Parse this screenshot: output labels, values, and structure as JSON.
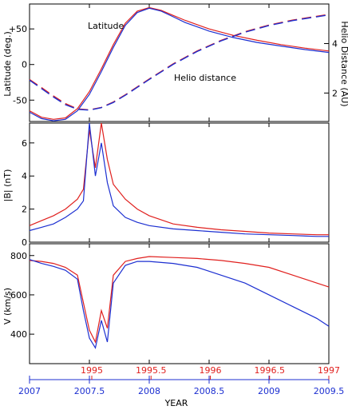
{
  "colors": {
    "red": "#e0201e",
    "blue": "#1c2fd1",
    "axis": "#000000"
  },
  "chart_data": [
    {
      "type": "line",
      "panel": "top",
      "ylabel": "Latitude (deg.)",
      "ylabel_right": "Helio Distance (AU)",
      "ylim": [
        -80,
        85
      ],
      "ylim_right": [
        0.85,
        5.6
      ],
      "yticks": [
        50,
        0,
        -50
      ],
      "ytick_labels": [
        "+50",
        "0",
        "-50"
      ],
      "yticks_right": [
        2,
        4
      ],
      "ytick_labels_right": [
        "2",
        "4"
      ],
      "annotations": [
        "Latitude",
        "Helio distance"
      ],
      "series": [
        {
          "color": "red",
          "x": [
            2007.0,
            2007.1,
            2007.2,
            2007.3,
            2007.4,
            2007.5,
            2007.6,
            2007.7,
            2007.8,
            2007.9,
            2008.0,
            2008.1,
            2008.2,
            2008.3,
            2008.5,
            2008.7,
            2008.9,
            2009.1,
            2009.3,
            2009.5
          ],
          "values": [
            -65,
            -74,
            -77,
            -75,
            -62,
            -38,
            -6,
            28,
            58,
            75,
            80,
            76,
            69,
            62,
            50,
            41,
            34,
            28,
            23,
            19
          ]
        },
        {
          "color": "blue",
          "x": [
            2007.0,
            2007.1,
            2007.2,
            2007.3,
            2007.4,
            2007.5,
            2007.6,
            2007.7,
            2007.8,
            2007.9,
            2008.0,
            2008.1,
            2008.2,
            2008.3,
            2008.5,
            2008.7,
            2008.9,
            2009.1,
            2009.3,
            2009.5
          ],
          "values": [
            -67,
            -76,
            -79,
            -77,
            -65,
            -42,
            -10,
            24,
            55,
            73,
            79,
            75,
            67,
            59,
            47,
            38,
            31,
            26,
            21,
            17
          ]
        },
        {
          "color": "red",
          "dashed": true,
          "x": [
            2007.0,
            2007.1,
            2007.2,
            2007.3,
            2007.4,
            2007.5,
            2007.6,
            2007.7,
            2007.8,
            2007.9,
            2008.0,
            2008.2,
            2008.4,
            2008.6,
            2008.8,
            2009.0,
            2009.2,
            2009.5
          ],
          "values": [
            2.55,
            2.22,
            1.88,
            1.57,
            1.36,
            1.32,
            1.42,
            1.64,
            1.93,
            2.25,
            2.57,
            3.18,
            3.7,
            4.13,
            4.48,
            4.75,
            4.95,
            5.18
          ]
        },
        {
          "color": "blue",
          "dashed": true,
          "x": [
            2007.0,
            2007.1,
            2007.2,
            2007.3,
            2007.4,
            2007.5,
            2007.6,
            2007.7,
            2007.8,
            2007.9,
            2008.0,
            2008.2,
            2008.4,
            2008.6,
            2008.8,
            2009.0,
            2009.2,
            2009.5
          ],
          "values": [
            2.52,
            2.18,
            1.84,
            1.53,
            1.34,
            1.31,
            1.41,
            1.62,
            1.91,
            2.23,
            2.55,
            3.16,
            3.68,
            4.11,
            4.46,
            4.73,
            4.93,
            5.16
          ]
        }
      ]
    },
    {
      "type": "line",
      "panel": "middle",
      "ylabel": "|B| (nT)",
      "ylim": [
        0,
        7.2
      ],
      "yticks": [
        0,
        2,
        4,
        6
      ],
      "ytick_labels": [
        "0",
        "2",
        "4",
        "6"
      ],
      "series": [
        {
          "color": "red",
          "x": [
            2007.0,
            2007.1,
            2007.2,
            2007.3,
            2007.4,
            2007.45,
            2007.5,
            2007.55,
            2007.6,
            2007.65,
            2007.7,
            2007.8,
            2007.9,
            2008.0,
            2008.2,
            2008.4,
            2008.6,
            2008.8,
            2009.0,
            2009.2,
            2009.4,
            2009.5
          ],
          "values": [
            1.0,
            1.3,
            1.6,
            2.0,
            2.6,
            3.2,
            6.8,
            4.5,
            7.2,
            5.0,
            3.5,
            2.6,
            2.0,
            1.6,
            1.1,
            0.9,
            0.75,
            0.65,
            0.55,
            0.5,
            0.45,
            0.45
          ]
        },
        {
          "color": "blue",
          "x": [
            2007.0,
            2007.1,
            2007.2,
            2007.3,
            2007.4,
            2007.45,
            2007.5,
            2007.55,
            2007.6,
            2007.65,
            2007.7,
            2007.8,
            2007.9,
            2008.0,
            2008.2,
            2008.4,
            2008.6,
            2008.8,
            2009.0,
            2009.2,
            2009.4,
            2009.5
          ],
          "values": [
            0.7,
            0.9,
            1.1,
            1.5,
            2.0,
            2.5,
            7.2,
            4.0,
            6.0,
            3.6,
            2.2,
            1.5,
            1.2,
            1.0,
            0.8,
            0.7,
            0.6,
            0.5,
            0.45,
            0.4,
            0.35,
            0.35
          ]
        }
      ]
    },
    {
      "type": "line",
      "panel": "bottom",
      "ylabel": "V (km/s)",
      "ylim": [
        250,
        860
      ],
      "yticks": [
        400,
        600,
        800
      ],
      "ytick_labels": [
        "400",
        "600",
        "800"
      ],
      "series": [
        {
          "color": "red",
          "x": [
            2007.0,
            2007.1,
            2007.2,
            2007.3,
            2007.4,
            2007.45,
            2007.5,
            2007.55,
            2007.6,
            2007.65,
            2007.7,
            2007.8,
            2007.9,
            2008.0,
            2008.2,
            2008.4,
            2008.6,
            2008.8,
            2009.0,
            2009.2,
            2009.4,
            2009.5
          ],
          "values": [
            775,
            770,
            760,
            740,
            700,
            560,
            420,
            360,
            520,
            430,
            700,
            770,
            785,
            795,
            790,
            785,
            775,
            760,
            740,
            700,
            660,
            640
          ]
        },
        {
          "color": "blue",
          "x": [
            2007.0,
            2007.1,
            2007.2,
            2007.3,
            2007.4,
            2007.45,
            2007.5,
            2007.55,
            2007.6,
            2007.65,
            2007.7,
            2007.8,
            2007.9,
            2008.0,
            2008.2,
            2008.4,
            2008.6,
            2008.8,
            2009.0,
            2009.2,
            2009.4,
            2009.5
          ],
          "values": [
            780,
            760,
            745,
            725,
            680,
            520,
            380,
            330,
            470,
            360,
            660,
            750,
            770,
            770,
            760,
            740,
            700,
            660,
            600,
            540,
            480,
            440
          ]
        }
      ]
    }
  ],
  "x_axis_red": {
    "ticks": [
      1995,
      1995.5,
      1996,
      1996.5,
      1997
    ],
    "tick_labels": [
      "1995",
      "1995.5",
      "1996",
      "1996.5",
      "1997"
    ]
  },
  "x_axis_blue": {
    "label": "YEAR",
    "ticks": [
      2007,
      2007.5,
      2008,
      2008.5,
      2009,
      2009.5
    ],
    "tick_labels": [
      "2007",
      "2007.5",
      "2008",
      "2008.5",
      "2009",
      "2009.5"
    ],
    "range": [
      2007,
      2009.5
    ]
  }
}
